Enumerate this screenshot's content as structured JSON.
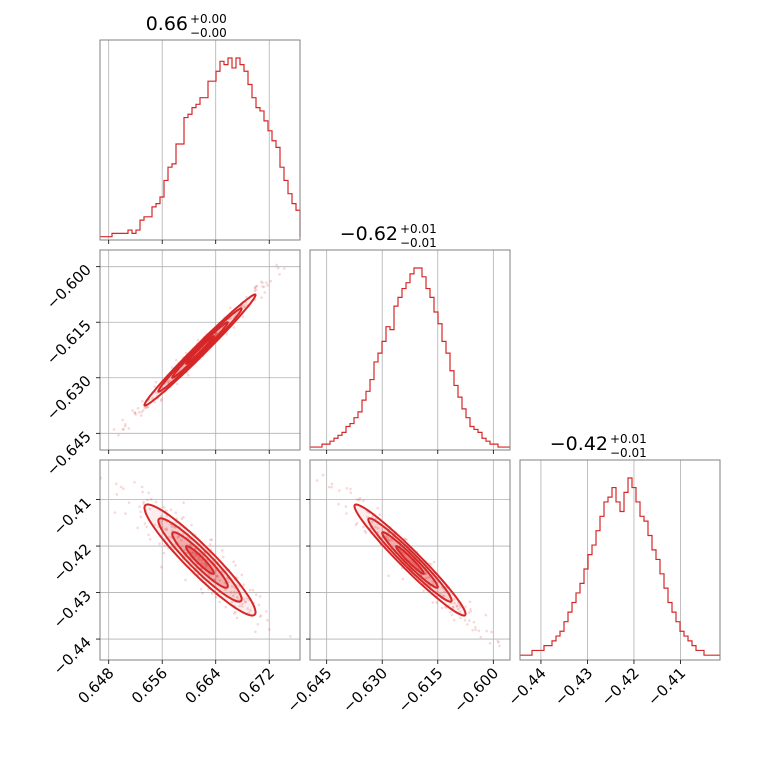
{
  "chart_data": {
    "type": "corner",
    "color": "#d62728",
    "parameters": [
      {
        "title": "0.66",
        "upper": "+0.00",
        "lower": "−0.00",
        "range": [
          0.6467,
          0.6766
        ],
        "ticks": [
          0.648,
          0.656,
          0.664,
          0.672
        ],
        "tick_labels": [
          "0.648",
          "0.656",
          "0.664",
          "0.672"
        ]
      },
      {
        "title": "−0.62",
        "upper": "+0.01",
        "lower": "−0.01",
        "range": [
          -0.6495,
          -0.5955
        ],
        "ticks": [
          -0.645,
          -0.63,
          -0.615,
          -0.6
        ],
        "tick_labels": [
          "−0.645",
          "−0.630",
          "−0.615",
          "−0.600"
        ]
      },
      {
        "title": "−0.42",
        "upper": "+0.01",
        "lower": "−0.01",
        "range": [
          -0.4445,
          -0.4015
        ],
        "ticks": [
          -0.44,
          -0.43,
          -0.42,
          -0.41
        ],
        "tick_labels": [
          "−0.44",
          "−0.43",
          "−0.42",
          "−0.41"
        ]
      }
    ],
    "histograms": [
      {
        "edges_start": 0.6467,
        "bin_width": 0.000598,
        "counts": [
          1,
          1,
          1,
          2,
          2,
          2,
          2,
          3,
          2,
          3,
          6,
          7,
          7,
          10,
          11,
          13,
          18,
          22,
          23,
          29,
          29,
          37,
          38,
          40,
          41,
          43,
          43,
          48,
          48,
          51,
          54,
          53,
          55,
          52,
          55,
          53,
          51,
          47,
          43,
          40,
          39,
          36,
          33,
          30,
          28,
          22,
          18,
          14,
          11,
          9,
          7,
          6,
          5,
          4,
          3,
          2,
          2,
          1,
          1,
          1
        ]
      },
      {
        "edges_start": -0.6495,
        "bin_width": 0.00108,
        "counts": [
          1,
          1,
          1,
          2,
          2,
          3,
          4,
          5,
          6,
          8,
          9,
          11,
          13,
          17,
          20,
          24,
          30,
          33,
          37,
          42,
          41,
          49,
          52,
          55,
          57,
          60,
          62,
          62,
          59,
          55,
          52,
          47,
          43,
          37,
          33,
          27,
          22,
          18,
          14,
          11,
          8,
          7,
          6,
          4,
          3,
          2,
          2,
          1,
          1,
          1
        ]
      },
      {
        "edges_start": -0.4445,
        "bin_width": 0.00086,
        "counts": [
          1,
          1,
          1,
          2,
          2,
          2,
          3,
          3,
          4,
          5,
          6,
          8,
          10,
          12,
          14,
          16,
          19,
          22,
          24,
          27,
          30,
          33,
          34,
          36,
          33,
          31,
          35,
          38,
          36,
          33,
          30,
          29,
          26,
          23,
          21,
          18,
          15,
          12,
          10,
          8,
          6,
          5,
          4,
          3,
          2,
          2,
          1,
          1,
          1,
          1
        ]
      }
    ],
    "correlations": [
      {
        "row": 1,
        "col": 0,
        "rho": 0.99
      },
      {
        "row": 2,
        "col": 0,
        "rho": -0.94
      },
      {
        "row": 2,
        "col": 1,
        "rho": -0.97
      }
    ]
  }
}
